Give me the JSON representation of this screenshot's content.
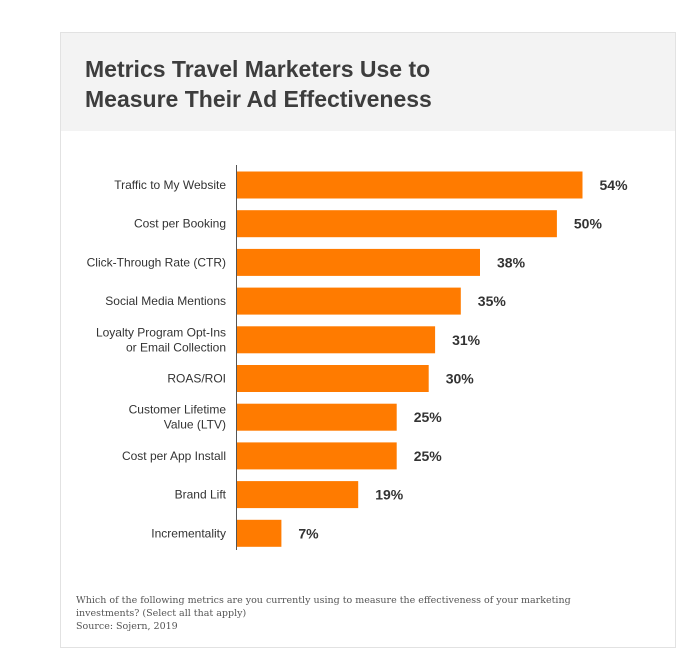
{
  "title_line1": "Metrics Travel Marketers Use to",
  "title_line2": "Measure Their Ad Effectiveness",
  "question": "Which of the following metrics are you currently using to measure the effectiveness of your marketing investments? (Select all that apply)",
  "source": "Source: Sojern, 2019",
  "colors": {
    "bar": "#ff7b00",
    "header_bg": "#f3f3f3",
    "axis": "#555555",
    "text": "#333333"
  },
  "chart_data": {
    "type": "bar",
    "orientation": "horizontal",
    "title": "Metrics Travel Marketers Use to Measure Their Ad Effectiveness",
    "categories": [
      [
        "Traffic to My Website"
      ],
      [
        "Cost per Booking"
      ],
      [
        "Click-Through Rate (CTR)"
      ],
      [
        "Social Media Mentions"
      ],
      [
        "Loyalty Program Opt-Ins",
        "or Email Collection"
      ],
      [
        "ROAS/ROI"
      ],
      [
        "Customer Lifetime",
        "Value (LTV)"
      ],
      [
        "Cost per App Install"
      ],
      [
        "Brand Lift"
      ],
      [
        "Incrementality"
      ]
    ],
    "values": [
      54,
      50,
      38,
      35,
      31,
      30,
      25,
      25,
      19,
      7
    ],
    "value_labels": [
      "54%",
      "50%",
      "38%",
      "35%",
      "31%",
      "30%",
      "25%",
      "25%",
      "19%",
      "7%"
    ],
    "xlim": [
      0,
      54
    ],
    "grid": false,
    "legend": "none"
  }
}
